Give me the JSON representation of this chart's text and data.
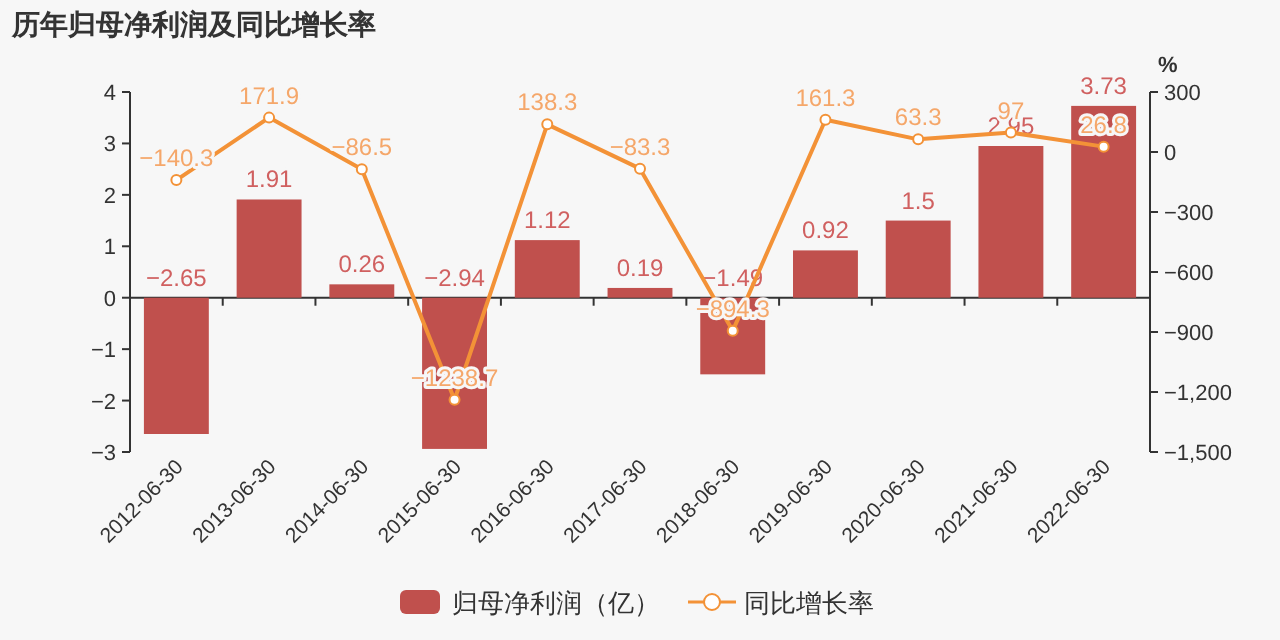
{
  "chart_data": {
    "type": "bar",
    "title": "历年归母净利润及同比增长率",
    "y2label": "%",
    "categories": [
      "2012-06-30",
      "2013-06-30",
      "2014-06-30",
      "2015-06-30",
      "2016-06-30",
      "2017-06-30",
      "2018-06-30",
      "2019-06-30",
      "2020-06-30",
      "2021-06-30",
      "2022-06-30"
    ],
    "series": [
      {
        "name": "归母净利润（亿）",
        "color": "#c0504d",
        "values": [
          -2.65,
          1.91,
          0.26,
          -2.94,
          1.12,
          0.19,
          -1.49,
          0.92,
          1.5,
          2.95,
          3.73
        ]
      },
      {
        "name": "同比增长率",
        "type": "line",
        "axis": "y2",
        "color": "#f39237",
        "marker": "circle",
        "values": [
          -140.3,
          171.9,
          -86.5,
          -1238.7,
          138.3,
          -83.3,
          -894.3,
          161.3,
          63.3,
          97,
          26.8
        ]
      }
    ],
    "ylim": [
      -3,
      4
    ],
    "yticks": [
      {
        "value": -3,
        "label": "−3"
      },
      {
        "value": -2,
        "label": "−2"
      },
      {
        "value": -1,
        "label": "−1"
      },
      0,
      1,
      2,
      3,
      4
    ],
    "y2lim": [
      -1500,
      300
    ],
    "y2ticks": [
      {
        "value": -1500,
        "label": "−1,500"
      },
      {
        "value": -1200,
        "label": "−1,200"
      },
      {
        "value": -900,
        "label": "−900"
      },
      {
        "value": -600,
        "label": "−600"
      },
      {
        "value": -300,
        "label": "−300"
      },
      0,
      300
    ],
    "data_labels": true,
    "legend": "bottom"
  }
}
